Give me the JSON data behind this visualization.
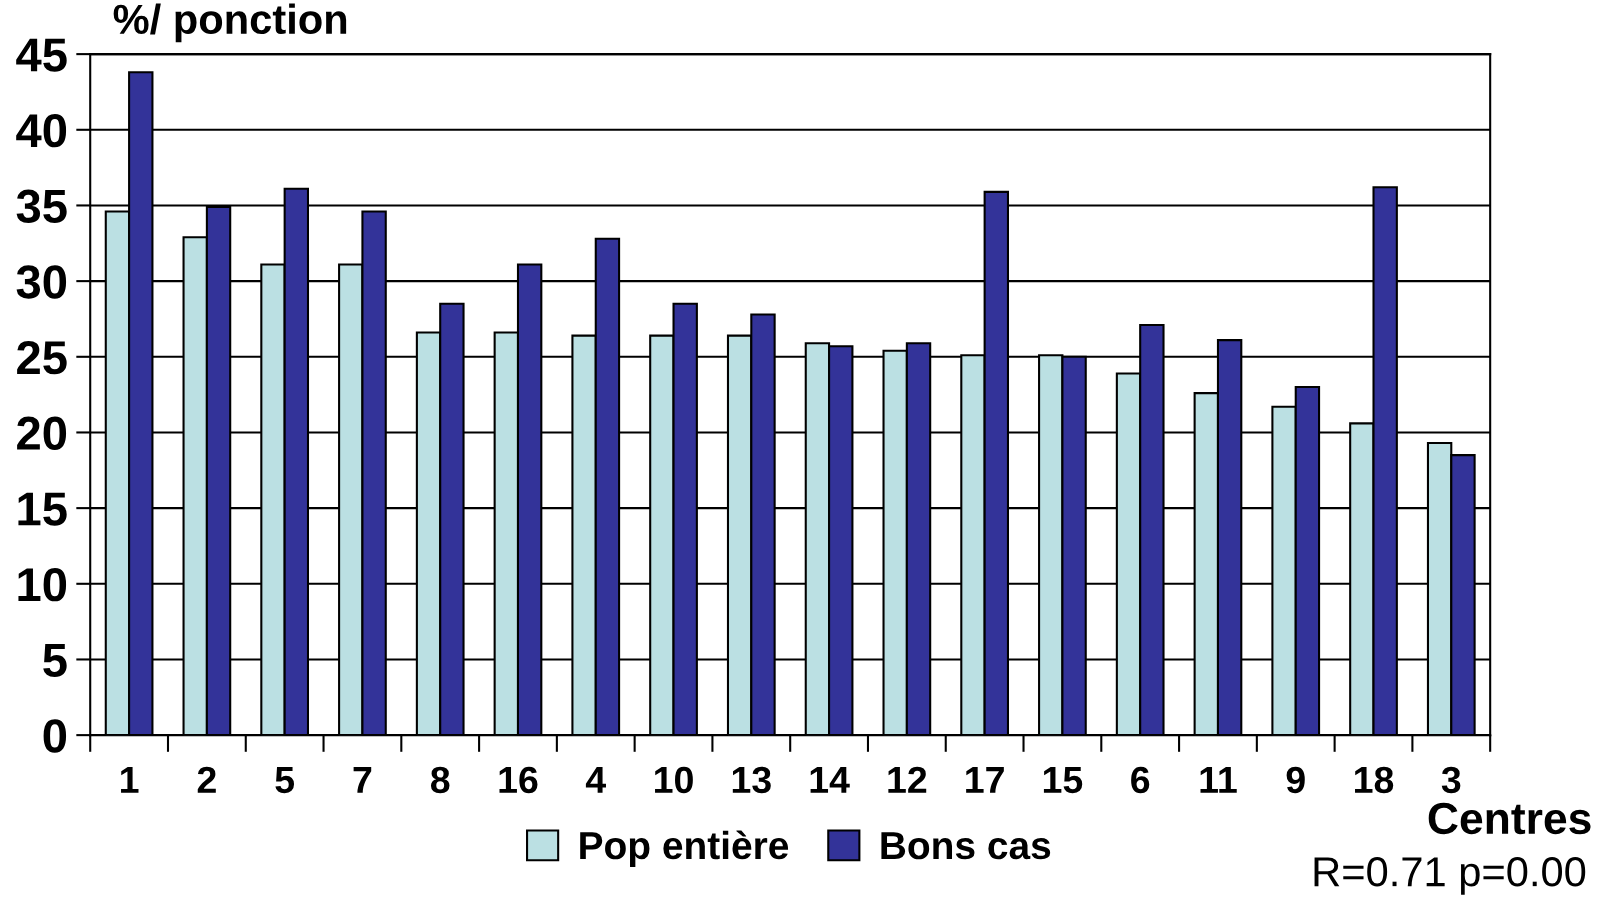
{
  "chart_data": {
    "type": "bar",
    "ylabel": "%/ ponction",
    "xlabel": "Centres",
    "categories": [
      "1",
      "2",
      "5",
      "7",
      "8",
      "16",
      "4",
      "10",
      "13",
      "14",
      "12",
      "17",
      "15",
      "6",
      "11",
      "9",
      "18",
      "3"
    ],
    "series": [
      {
        "name": "Pop entière",
        "color": "#bbe0e3",
        "values": [
          34.6,
          32.9,
          31.1,
          31.1,
          26.6,
          26.6,
          26.4,
          26.4,
          26.4,
          25.9,
          25.4,
          25.1,
          25.1,
          23.9,
          22.6,
          21.7,
          20.6,
          19.3
        ]
      },
      {
        "name": "Bons cas",
        "color": "#333399",
        "values": [
          43.8,
          34.9,
          36.1,
          34.6,
          28.5,
          31.1,
          32.8,
          28.5,
          27.8,
          25.7,
          25.9,
          35.9,
          25.0,
          27.1,
          26.1,
          23.0,
          36.2,
          18.5
        ]
      }
    ],
    "ylim": [
      0,
      45
    ],
    "yticks": [
      0,
      5,
      10,
      15,
      20,
      25,
      30,
      35,
      40,
      45
    ],
    "grid": "y",
    "legend": "bottom",
    "annotations": [
      "R=0.71 p=0.00"
    ]
  }
}
